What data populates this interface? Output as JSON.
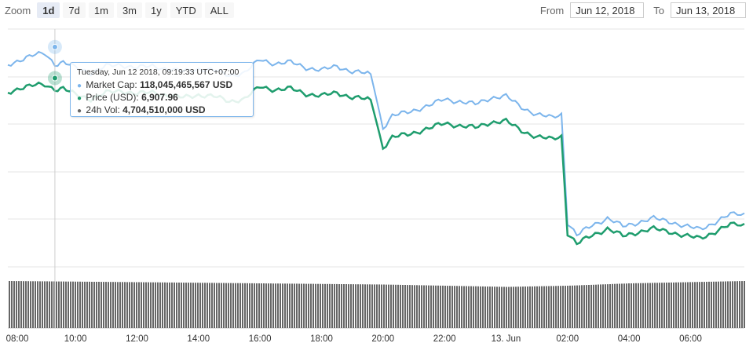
{
  "zoom": {
    "label": "Zoom",
    "buttons": [
      "1d",
      "7d",
      "1m",
      "3m",
      "1y",
      "YTD",
      "ALL"
    ],
    "active": "1d"
  },
  "range": {
    "from_label": "From",
    "from_value": "Jun 12, 2018",
    "to_label": "To",
    "to_value": "Jun 13, 2018"
  },
  "tooltip": {
    "date": "Tuesday, Jun 12 2018, 09:19:33 UTC+07:00",
    "rows": [
      {
        "name": "Market Cap",
        "value": "118,045,465,567 USD",
        "color": "#7cb5ec"
      },
      {
        "name": "Price (USD)",
        "value": "6,907.96",
        "color": "#1f9d6e"
      },
      {
        "name": "24h Vol",
        "value": "4,704,510,000 USD",
        "color": "#666666"
      }
    ]
  },
  "colors": {
    "market_cap": "#7cb5ec",
    "price": "#1f9d6e",
    "volume": "#666666",
    "grid": "#e6e6e6"
  },
  "chart_data": {
    "type": "line",
    "x_tick_labels": [
      "08:00",
      "10:00",
      "12:00",
      "14:00",
      "16:00",
      "18:00",
      "20:00",
      "22:00",
      "13. Jun",
      "02:00",
      "04:00",
      "06:00"
    ],
    "x_tick_hours": [
      8,
      10,
      12,
      14,
      16,
      18,
      20,
      22,
      24,
      26,
      28,
      30
    ],
    "x_range_hours": [
      7.8,
      31.75
    ],
    "hover_hour": 9.33,
    "series": [
      {
        "name": "Market Cap",
        "points": [
          [
            7.8,
            118.0
          ],
          [
            8.2,
            118.4
          ],
          [
            8.6,
            118.7
          ],
          [
            9.0,
            118.9
          ],
          [
            9.33,
            118.05
          ],
          [
            9.6,
            118.2
          ],
          [
            10.0,
            117.8
          ],
          [
            10.5,
            117.4
          ],
          [
            11.0,
            117.9
          ],
          [
            11.5,
            118.0
          ],
          [
            12.0,
            117.8
          ],
          [
            12.5,
            117.9
          ],
          [
            13.0,
            117.7
          ],
          [
            13.5,
            117.5
          ],
          [
            14.0,
            117.7
          ],
          [
            14.5,
            117.6
          ],
          [
            15.0,
            117.2
          ],
          [
            15.5,
            117.4
          ],
          [
            16.0,
            118.4
          ],
          [
            16.5,
            118.1
          ],
          [
            17.0,
            118.2
          ],
          [
            17.5,
            117.8
          ],
          [
            18.0,
            117.6
          ],
          [
            18.5,
            117.9
          ],
          [
            19.0,
            117.5
          ],
          [
            19.6,
            117.3
          ],
          [
            20.0,
            113.2
          ],
          [
            20.3,
            114.1
          ],
          [
            20.8,
            114.4
          ],
          [
            21.5,
            114.9
          ],
          [
            22.0,
            115.4
          ],
          [
            22.5,
            115.2
          ],
          [
            23.0,
            115.0
          ],
          [
            23.5,
            115.5
          ],
          [
            24.0,
            115.6
          ],
          [
            24.5,
            114.8
          ],
          [
            25.0,
            114.2
          ],
          [
            25.5,
            114.0
          ],
          [
            25.8,
            114.3
          ],
          [
            26.0,
            106.0
          ],
          [
            26.3,
            105.0
          ],
          [
            26.8,
            105.8
          ],
          [
            27.3,
            106.3
          ],
          [
            27.8,
            105.7
          ],
          [
            28.3,
            106.0
          ],
          [
            28.8,
            106.3
          ],
          [
            29.3,
            106.1
          ],
          [
            29.8,
            105.7
          ],
          [
            30.3,
            105.5
          ],
          [
            30.8,
            106.0
          ],
          [
            31.3,
            106.6
          ],
          [
            31.75,
            106.7
          ]
        ]
      },
      {
        "name": "Price (USD)",
        "points": [
          [
            7.8,
            6890
          ],
          [
            8.2,
            6915
          ],
          [
            8.6,
            6925
          ],
          [
            9.0,
            6930
          ],
          [
            9.33,
            6907.96
          ],
          [
            9.6,
            6912
          ],
          [
            10.0,
            6880
          ],
          [
            10.5,
            6860
          ],
          [
            11.0,
            6890
          ],
          [
            11.5,
            6900
          ],
          [
            12.0,
            6885
          ],
          [
            12.5,
            6892
          ],
          [
            13.0,
            6878
          ],
          [
            13.5,
            6866
          ],
          [
            14.0,
            6880
          ],
          [
            14.5,
            6872
          ],
          [
            15.0,
            6848
          ],
          [
            15.5,
            6860
          ],
          [
            16.0,
            6920
          ],
          [
            16.5,
            6905
          ],
          [
            17.0,
            6910
          ],
          [
            17.5,
            6885
          ],
          [
            18.0,
            6875
          ],
          [
            18.5,
            6890
          ],
          [
            19.0,
            6868
          ],
          [
            19.6,
            6855
          ],
          [
            20.0,
            6620
          ],
          [
            20.3,
            6670
          ],
          [
            20.8,
            6685
          ],
          [
            21.5,
            6715
          ],
          [
            22.0,
            6740
          ],
          [
            22.5,
            6728
          ],
          [
            23.0,
            6718
          ],
          [
            23.5,
            6745
          ],
          [
            24.0,
            6750
          ],
          [
            24.5,
            6705
          ],
          [
            25.0,
            6672
          ],
          [
            25.5,
            6662
          ],
          [
            25.8,
            6680
          ],
          [
            26.0,
            6200
          ],
          [
            26.3,
            6145
          ],
          [
            26.8,
            6190
          ],
          [
            27.3,
            6220
          ],
          [
            27.8,
            6185
          ],
          [
            28.3,
            6205
          ],
          [
            28.8,
            6220
          ],
          [
            29.3,
            6208
          ],
          [
            29.8,
            6185
          ],
          [
            30.3,
            6175
          ],
          [
            30.8,
            6205
          ],
          [
            31.3,
            6240
          ],
          [
            31.75,
            6245
          ]
        ]
      },
      {
        "name": "24h Vol",
        "points": [
          [
            7.8,
            4.7
          ],
          [
            12.0,
            4.69
          ],
          [
            16.0,
            4.68
          ],
          [
            20.0,
            4.67
          ],
          [
            24.0,
            4.65
          ],
          [
            26.0,
            4.66
          ],
          [
            28.0,
            4.68
          ],
          [
            31.75,
            4.7
          ]
        ]
      }
    ]
  }
}
